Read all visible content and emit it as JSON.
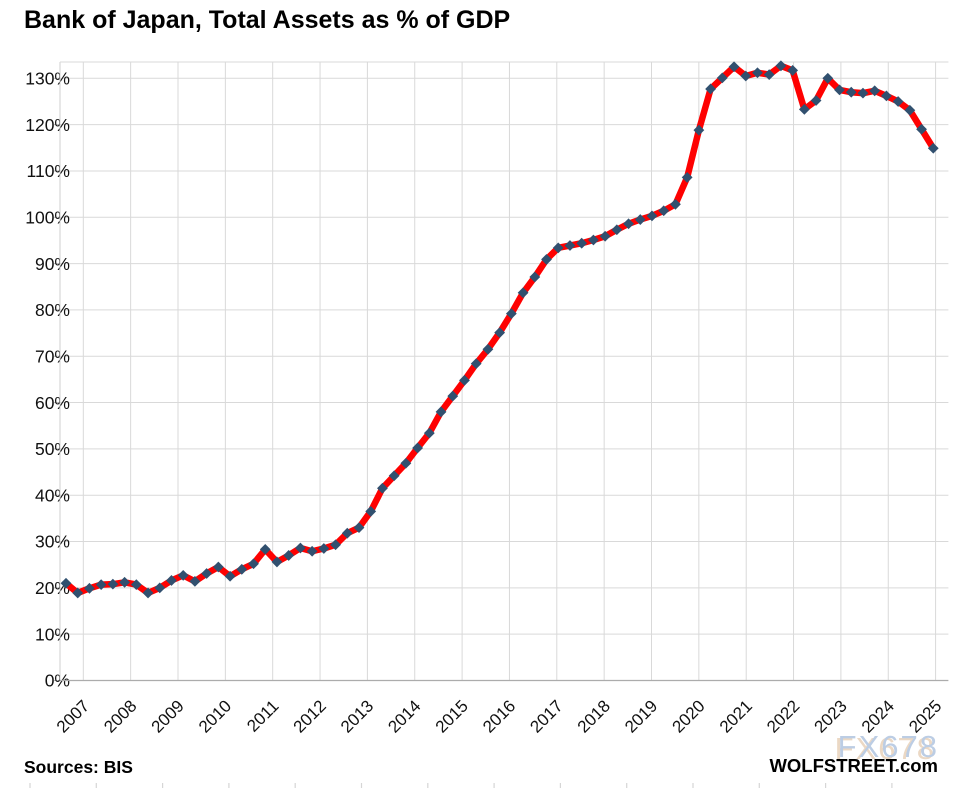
{
  "title": "Bank of Japan, Total Assets as % of GDP",
  "footer": {
    "source": "Sources: BIS",
    "brand": "WOLFSTREET.com",
    "watermark": "FX678"
  },
  "chart_data": {
    "type": "line",
    "title": "Bank of Japan, Total Assets as % of GDP",
    "xlabel": "",
    "ylabel": "",
    "y_axis_format": "percent",
    "ylim": [
      0,
      133.5
    ],
    "grid": true,
    "legend_position": "none",
    "line_color": "#FE0101",
    "marker_color": "#31506F",
    "marker_shape": "diamond",
    "grid_color": "#D9D9D9",
    "axis_color": "#ACACAC",
    "watermark_color": "#B7C9E2",
    "watermark_shadow_color": "#EAD5BF",
    "y_ticks": [
      "0%",
      "10%",
      "20%",
      "30%",
      "40%",
      "50%",
      "60%",
      "70%",
      "80%",
      "90%",
      "100%",
      "110%",
      "120%",
      "130%"
    ],
    "x_tick_years": [
      "2007",
      "2008",
      "2009",
      "2010",
      "2011",
      "2012",
      "2013",
      "2014",
      "2015",
      "2016",
      "2017",
      "2018",
      "2019",
      "2020",
      "2021",
      "2022",
      "2023",
      "2024",
      "2025"
    ],
    "x_quarters": [
      "2006 Q3",
      "2006 Q4",
      "2007 Q1",
      "2007 Q2",
      "2007 Q3",
      "2007 Q4",
      "2008 Q1",
      "2008 Q2",
      "2008 Q3",
      "2008 Q4",
      "2009 Q1",
      "2009 Q2",
      "2009 Q3",
      "2009 Q4",
      "2010 Q1",
      "2010 Q2",
      "2010 Q3",
      "2010 Q4",
      "2011 Q1",
      "2011 Q2",
      "2011 Q3",
      "2011 Q4",
      "2012 Q1",
      "2012 Q2",
      "2012 Q3",
      "2012 Q4",
      "2013 Q1",
      "2013 Q2",
      "2013 Q3",
      "2013 Q4",
      "2014 Q1",
      "2014 Q2",
      "2014 Q3",
      "2014 Q4",
      "2015 Q1",
      "2015 Q2",
      "2015 Q3",
      "2015 Q4",
      "2016 Q1",
      "2016 Q2",
      "2016 Q3",
      "2016 Q4",
      "2017 Q1",
      "2017 Q2",
      "2017 Q3",
      "2017 Q4",
      "2018 Q1",
      "2018 Q2",
      "2018 Q3",
      "2018 Q4",
      "2019 Q1",
      "2019 Q2",
      "2019 Q3",
      "2019 Q4",
      "2020 Q1",
      "2020 Q2",
      "2020 Q3",
      "2020 Q4",
      "2021 Q1",
      "2021 Q2",
      "2021 Q3",
      "2021 Q4",
      "2022 Q1",
      "2022 Q2",
      "2022 Q3",
      "2022 Q4",
      "2023 Q1",
      "2023 Q2",
      "2023 Q3",
      "2023 Q4",
      "2024 Q1",
      "2024 Q2",
      "2024 Q3",
      "2024 Q4",
      "2025 Q1"
    ],
    "values": [
      21.0,
      18.9,
      19.9,
      20.7,
      20.8,
      21.2,
      20.7,
      18.9,
      20.0,
      21.6,
      22.7,
      21.4,
      23.1,
      24.5,
      22.5,
      24.0,
      25.2,
      28.3,
      25.6,
      27.0,
      28.6,
      27.9,
      28.5,
      29.3,
      31.8,
      33.0,
      36.5,
      41.5,
      44.2,
      46.9,
      50.2,
      53.4,
      58.0,
      61.4,
      64.8,
      68.4,
      71.5,
      75.1,
      79.2,
      83.7,
      87.1,
      90.9,
      93.4,
      93.9,
      94.4,
      95.1,
      95.9,
      97.3,
      98.6,
      99.5,
      100.3,
      101.4,
      102.8,
      108.6,
      118.8,
      127.7,
      130.1,
      132.5,
      130.5,
      131.2,
      130.8,
      132.7,
      131.7,
      123.3,
      125.2,
      130.0,
      127.5,
      127.0,
      126.8,
      127.3,
      126.2,
      125.0,
      123.1,
      119.0,
      114.9
    ]
  }
}
